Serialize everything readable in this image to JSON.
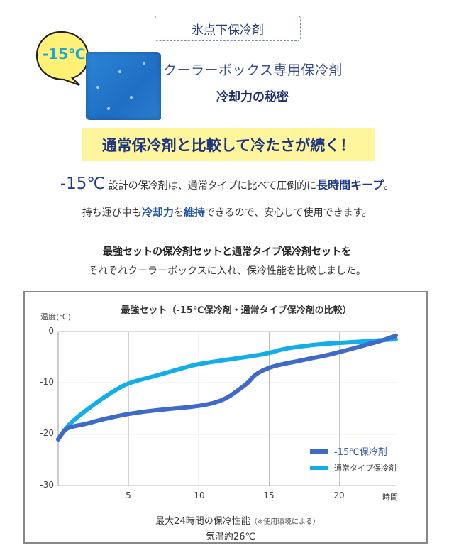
{
  "header": {
    "badge": "氷点下保冷剤",
    "bubble_text": "-15℃",
    "subtitle": "クーラーボックス専用保冷剤",
    "subtitle_secret": "冷却力の秘密"
  },
  "banner": {
    "text": "通常保冷剤と比較して冷たさが続く！"
  },
  "description": {
    "line1_big": "-15℃",
    "line1_text": " 設計の保冷剤は、通常タイプに比べて圧倒的に",
    "line1_em": "長時間キープ",
    "line1_end": "。",
    "line2_a": "持ち運び中も",
    "line2_em1": "冷却力",
    "line2_b": "を",
    "line2_em2": "維持",
    "line2_c": "できるので、安心して使用できます。",
    "line3": "最強セットの保冷剤セットと通常タイプ保冷剤セットを",
    "line4": "それぞれクーラーボックスに入れ、保冷性能を比較しました。"
  },
  "colors": {
    "series_minus15": "#3f6ac8",
    "series_normal": "#12aee8",
    "banner_bg": "#fff59d",
    "bubble_bg": "#fff176"
  },
  "chart_data": {
    "type": "line",
    "title": "最強セット（-15℃保冷剤・通常タイプ保冷剤の比較）",
    "xlabel": "時間",
    "ylabel": "温度(℃)",
    "xlim": [
      0,
      24
    ],
    "ylim": [
      -30,
      0
    ],
    "x_ticks": [
      "5",
      "10",
      "15",
      "20"
    ],
    "y_ticks": [
      "0",
      "-10",
      "-20",
      "-30"
    ],
    "grid": true,
    "legend_position": "lower right",
    "series": [
      {
        "name": "-15℃保冷剤",
        "color": "#3f6ac8",
        "x": [
          0,
          0.5,
          1,
          2,
          3,
          5,
          7,
          9,
          10,
          11,
          12,
          13,
          13.5,
          14,
          15,
          16,
          17,
          18,
          19,
          20,
          21,
          22,
          23,
          24
        ],
        "values": [
          -21,
          -19,
          -18.5,
          -18,
          -17.2,
          -16,
          -15.3,
          -14.8,
          -14.5,
          -14,
          -13,
          -11,
          -10,
          -8.3,
          -7,
          -6.3,
          -5.8,
          -5.2,
          -4.7,
          -4,
          -3.3,
          -2.5,
          -1.8,
          -0.8
        ]
      },
      {
        "name": "通常タイプ保冷剤",
        "color": "#12aee8",
        "x": [
          0,
          0.5,
          1,
          2,
          3,
          4,
          5,
          7,
          9,
          10,
          12,
          14,
          15,
          16,
          18,
          20,
          22,
          24
        ],
        "values": [
          -21,
          -19,
          -17.5,
          -15.3,
          -13.3,
          -11.5,
          -10,
          -8.6,
          -7,
          -6.3,
          -5.5,
          -4.7,
          -4.2,
          -3.4,
          -2.6,
          -2.2,
          -1.9,
          -1.5
        ]
      }
    ],
    "footnote": "最大24時間の保冷性能",
    "footnote_small": "（※使用環境による）",
    "condition": "気温約26℃"
  }
}
